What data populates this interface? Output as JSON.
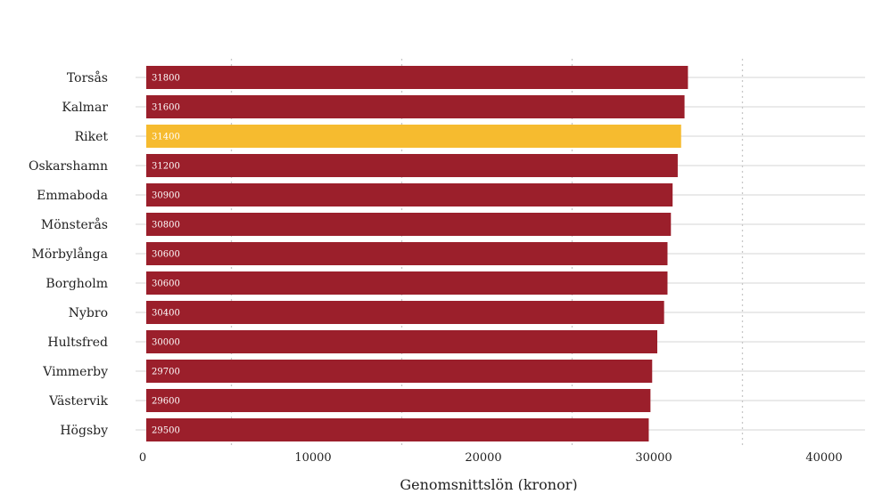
{
  "chart_data": {
    "type": "bar",
    "orientation": "horizontal",
    "title": "",
    "xlabel": "Genomsnittslön (kronor)",
    "ylabel": "",
    "categories": [
      "Torsås",
      "Kalmar",
      "Riket",
      "Oskarshamn",
      "Emmaboda",
      "Mönsterås",
      "Mörbylånga",
      "Borgholm",
      "Nybro",
      "Hultsfred",
      "Vimmerby",
      "Västervik",
      "Högsby"
    ],
    "values": [
      31800,
      31600,
      31400,
      31200,
      30900,
      30800,
      30600,
      30600,
      30400,
      30000,
      29700,
      29600,
      29500
    ],
    "data_labels": [
      "31800",
      "31600",
      "31400",
      "31200",
      "30900",
      "30800",
      "30600",
      "30600",
      "30400",
      "30000",
      "29700",
      "29600",
      "29500"
    ],
    "highlight_category": "Riket",
    "xlim": [
      0,
      42000
    ],
    "x_ticks": [
      0,
      10000,
      20000,
      30000,
      40000
    ],
    "x_tick_labels": [
      "0",
      "10000",
      "20000",
      "30000",
      "40000"
    ],
    "grid": true,
    "legend": "none",
    "colors": {
      "bar": "#9B1F2B",
      "highlight": "#F6BB2F",
      "grid_major": "#e4e4e4",
      "grid_dotted": "#c8c8c8",
      "text": "#222222",
      "label": "#ffffff"
    }
  }
}
